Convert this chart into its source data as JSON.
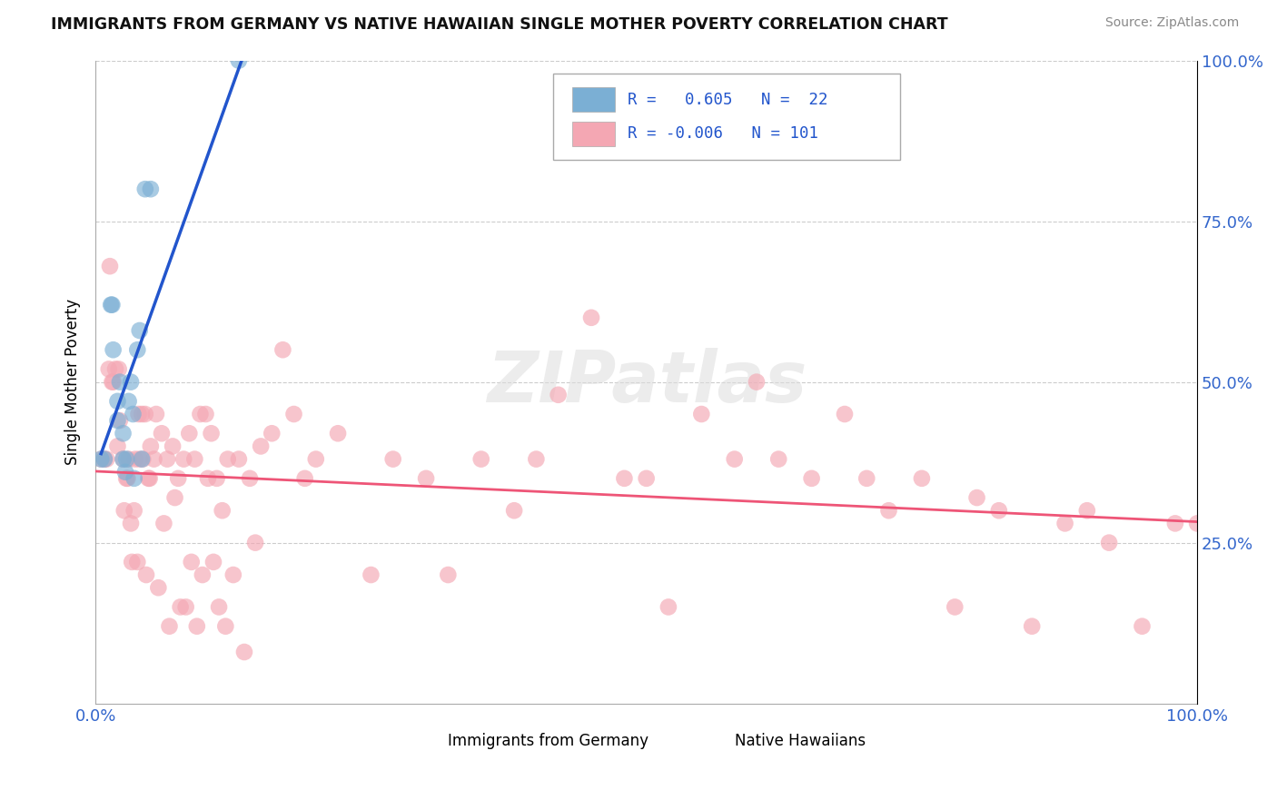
{
  "title": "IMMIGRANTS FROM GERMANY VS NATIVE HAWAIIAN SINGLE MOTHER POVERTY CORRELATION CHART",
  "source": "Source: ZipAtlas.com",
  "ylabel": "Single Mother Poverty",
  "legend_label1": "Immigrants from Germany",
  "legend_label2": "Native Hawaiians",
  "R1": 0.605,
  "N1": 22,
  "R2": -0.006,
  "N2": 101,
  "color_blue": "#7BAFD4",
  "color_pink": "#F4A7B3",
  "color_blue_line": "#2255CC",
  "color_pink_line": "#EE5577",
  "blue_points_x": [
    0.005,
    0.008,
    0.014,
    0.015,
    0.016,
    0.02,
    0.02,
    0.022,
    0.025,
    0.025,
    0.027,
    0.028,
    0.03,
    0.032,
    0.034,
    0.035,
    0.038,
    0.04,
    0.042,
    0.045,
    0.05,
    0.13
  ],
  "blue_points_y": [
    0.38,
    0.38,
    0.62,
    0.62,
    0.55,
    0.44,
    0.47,
    0.5,
    0.38,
    0.42,
    0.36,
    0.38,
    0.47,
    0.5,
    0.45,
    0.35,
    0.55,
    0.58,
    0.38,
    0.8,
    0.8,
    1.0
  ],
  "pink_points_x": [
    0.005,
    0.01,
    0.012,
    0.015,
    0.018,
    0.02,
    0.022,
    0.025,
    0.028,
    0.03,
    0.032,
    0.035,
    0.038,
    0.04,
    0.042,
    0.045,
    0.048,
    0.05,
    0.055,
    0.06,
    0.065,
    0.07,
    0.075,
    0.08,
    0.085,
    0.09,
    0.095,
    0.1,
    0.105,
    0.11,
    0.115,
    0.12,
    0.13,
    0.14,
    0.15,
    0.16,
    0.17,
    0.18,
    0.19,
    0.2,
    0.22,
    0.25,
    0.27,
    0.3,
    0.32,
    0.35,
    0.38,
    0.4,
    0.42,
    0.45,
    0.48,
    0.5,
    0.52,
    0.55,
    0.58,
    0.6,
    0.62,
    0.65,
    0.68,
    0.7,
    0.72,
    0.75,
    0.78,
    0.8,
    0.82,
    0.85,
    0.88,
    0.9,
    0.92,
    0.95,
    0.98,
    1.0,
    0.008,
    0.013,
    0.016,
    0.021,
    0.026,
    0.029,
    0.033,
    0.036,
    0.039,
    0.043,
    0.046,
    0.049,
    0.053,
    0.057,
    0.062,
    0.067,
    0.072,
    0.077,
    0.082,
    0.087,
    0.092,
    0.097,
    0.102,
    0.107,
    0.112,
    0.118,
    0.125,
    0.135,
    0.145
  ],
  "pink_points_y": [
    0.38,
    0.38,
    0.52,
    0.5,
    0.52,
    0.4,
    0.44,
    0.38,
    0.35,
    0.38,
    0.28,
    0.3,
    0.22,
    0.38,
    0.45,
    0.45,
    0.35,
    0.4,
    0.45,
    0.42,
    0.38,
    0.4,
    0.35,
    0.38,
    0.42,
    0.38,
    0.45,
    0.45,
    0.42,
    0.35,
    0.3,
    0.38,
    0.38,
    0.35,
    0.4,
    0.42,
    0.55,
    0.45,
    0.35,
    0.38,
    0.42,
    0.2,
    0.38,
    0.35,
    0.2,
    0.38,
    0.3,
    0.38,
    0.48,
    0.6,
    0.35,
    0.35,
    0.15,
    0.45,
    0.38,
    0.5,
    0.38,
    0.35,
    0.45,
    0.35,
    0.3,
    0.35,
    0.15,
    0.32,
    0.3,
    0.12,
    0.28,
    0.3,
    0.25,
    0.12,
    0.28,
    0.28,
    0.38,
    0.68,
    0.5,
    0.52,
    0.3,
    0.35,
    0.22,
    0.38,
    0.45,
    0.38,
    0.2,
    0.35,
    0.38,
    0.18,
    0.28,
    0.12,
    0.32,
    0.15,
    0.15,
    0.22,
    0.12,
    0.2,
    0.35,
    0.22,
    0.15,
    0.12,
    0.2,
    0.08,
    0.25
  ]
}
